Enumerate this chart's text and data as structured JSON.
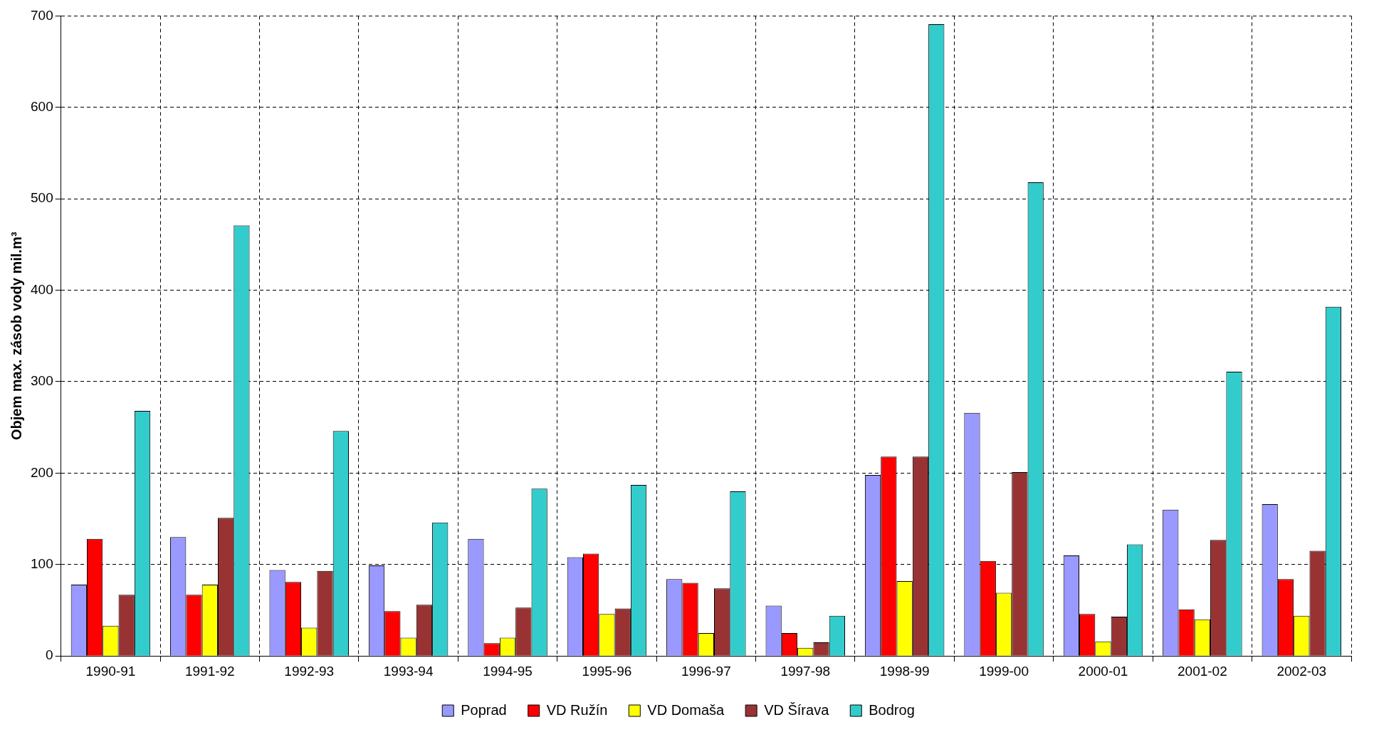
{
  "chart_data": {
    "type": "bar",
    "ylabel": "Objem max. zásob vody mil.m³",
    "categories": [
      "1990-91",
      "1991-92",
      "1992-93",
      "1993-94",
      "1994-95",
      "1995-96",
      "1996-97",
      "1997-98",
      "1998-99",
      "1999-00",
      "2000-01",
      "2001-02",
      "2002-03"
    ],
    "series": [
      {
        "name": "Poprad",
        "color": "#9999ff",
        "values": [
          78,
          130,
          94,
          99,
          128,
          108,
          84,
          55,
          198,
          266,
          110,
          160,
          166
        ]
      },
      {
        "name": "VD Ružín",
        "color": "#ff0000",
        "values": [
          128,
          67,
          81,
          49,
          14,
          112,
          80,
          25,
          218,
          104,
          46,
          51,
          84
        ]
      },
      {
        "name": "VD Domaša",
        "color": "#ffff00",
        "values": [
          33,
          78,
          31,
          20,
          20,
          46,
          25,
          9,
          82,
          69,
          16,
          40,
          44
        ]
      },
      {
        "name": "VD Šírava",
        "color": "#993333",
        "values": [
          67,
          151,
          93,
          56,
          53,
          52,
          74,
          15,
          218,
          201,
          43,
          127,
          115
        ]
      },
      {
        "name": "Bodrog",
        "color": "#33cccc",
        "values": [
          268,
          471,
          246,
          146,
          183,
          187,
          180,
          44,
          691,
          518,
          122,
          311,
          382
        ]
      }
    ],
    "ylim": [
      0,
      700
    ],
    "yticks": [
      0,
      100,
      200,
      300,
      400,
      500,
      600,
      700
    ],
    "grid": true,
    "legend": "bottom"
  }
}
